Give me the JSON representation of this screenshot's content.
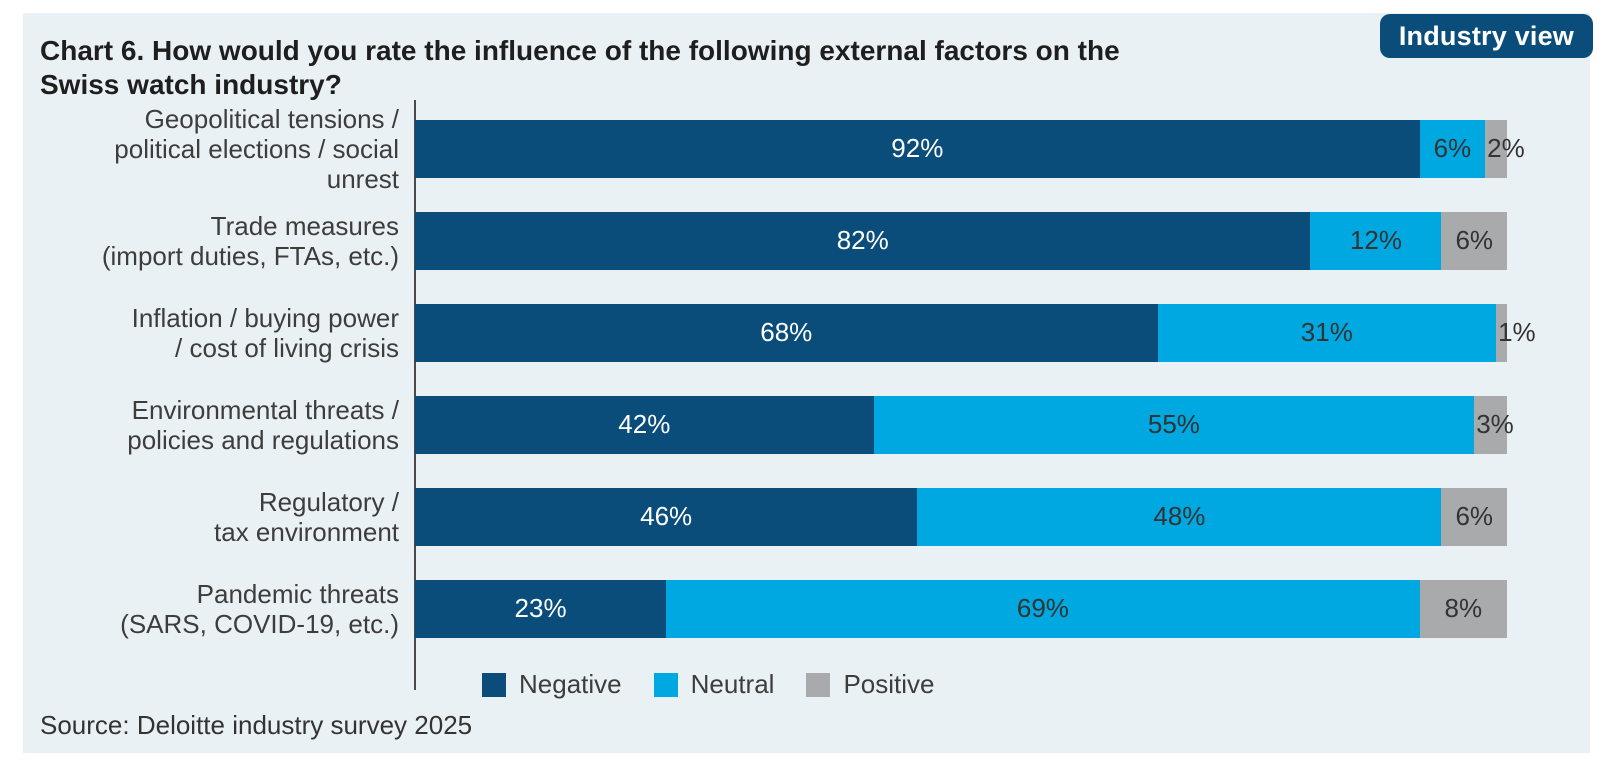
{
  "header": {
    "title_lines": [
      "Chart 6. How would you rate the influence of the following external factors on the",
      "Swiss watch industry?"
    ],
    "badge": "Industry view"
  },
  "chart_data": {
    "type": "bar",
    "stacked": true,
    "orientation": "horizontal",
    "unit": "%",
    "xlim": [
      0,
      100
    ],
    "grid": false,
    "legend_position": "bottom",
    "categories": [
      "Geopolitical tensions /\npolitical elections / social unrest",
      "Trade measures\n(import duties, FTAs, etc.)",
      "Inflation / buying power\n/ cost of living crisis",
      "Environmental threats /\npolicies and regulations",
      "Regulatory /\ntax environment",
      "Pandemic threats\n(SARS, COVID-19, etc.)"
    ],
    "series": [
      {
        "name": "Negative",
        "color": "#0a4d7a",
        "label_color": "#ffffff",
        "values": [
          92,
          82,
          68,
          42,
          46,
          23
        ]
      },
      {
        "name": "Neutral",
        "color": "#00a8e1",
        "label_color": "#333333",
        "values": [
          6,
          12,
          31,
          55,
          48,
          69
        ]
      },
      {
        "name": "Positive",
        "color": "#a9aaac",
        "label_color": "#333333",
        "values": [
          2,
          6,
          1,
          3,
          6,
          8
        ]
      }
    ]
  },
  "footer": {
    "source": "Source: Deloitte industry survey 2025"
  },
  "colors": {
    "card_background": "#eaf1f5",
    "page_background": "#ffffff",
    "badge_background": "#0a4d7a",
    "axis_line": "#4a4a4b",
    "title_text": "#1e1e1e",
    "label_text": "#3d3d3d"
  }
}
